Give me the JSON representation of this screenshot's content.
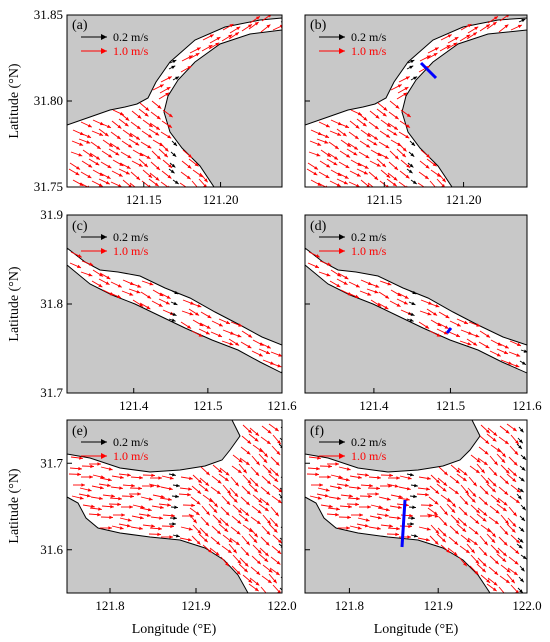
{
  "colors": {
    "land": "#c8c8c8",
    "water": "#ffffff",
    "arrow_strong": "#ff0000",
    "arrow_weak": "#000000",
    "section": "#0000ff"
  },
  "ylabel": "Latitude (°N)",
  "xlabel": "Longitude (°E)",
  "legend": {
    "weak": "0.2 m/s",
    "strong": "1.0 m/s"
  },
  "chart_data": [
    {
      "row": 0,
      "panels": [
        "(a)",
        "(b)"
      ],
      "type": "vector-field",
      "x_ticks": [
        "121.15",
        "121.20"
      ],
      "y_ticks": [
        "31.85",
        "31.80",
        "31.75"
      ],
      "xlim": [
        121.1,
        121.24
      ],
      "ylim": [
        31.75,
        31.85
      ],
      "ylabel": "Latitude (°N)",
      "section_in_panel": "(b)"
    },
    {
      "row": 1,
      "panels": [
        "(c)",
        "(d)"
      ],
      "type": "vector-field",
      "x_ticks": [
        "121.4",
        "121.5",
        "121.6"
      ],
      "y_ticks": [
        "31.9",
        "31.8",
        "31.7"
      ],
      "xlim": [
        121.31,
        121.6
      ],
      "ylim": [
        31.7,
        31.9
      ],
      "ylabel": "Latitude (°N)",
      "section_in_panel": "(d)"
    },
    {
      "row": 2,
      "panels": [
        "(e)",
        "(f)"
      ],
      "type": "vector-field",
      "x_ticks": [
        "121.8",
        "121.9",
        "122.0"
      ],
      "y_ticks": [
        "31.7",
        "31.6"
      ],
      "xlim": [
        121.75,
        122.0
      ],
      "ylim": [
        31.55,
        31.75
      ],
      "ylabel": "Latitude (°N)",
      "xlabel": "Longitude (°E)",
      "section_in_panel": "(f)"
    }
  ]
}
